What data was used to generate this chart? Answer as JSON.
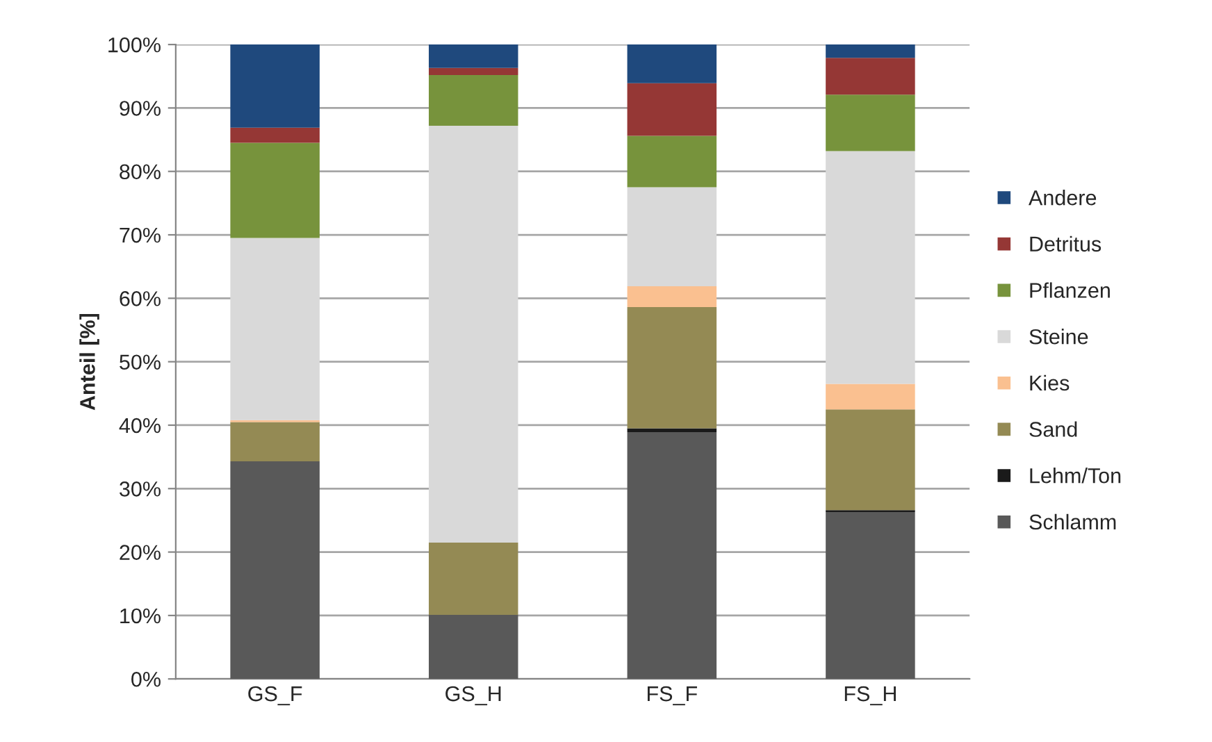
{
  "chart_data": {
    "type": "bar",
    "stacked": true,
    "ylabel": "Anteil [%]",
    "categories": [
      "GS_F",
      "GS_H",
      "FS_F",
      "FS_H"
    ],
    "series": [
      {
        "name": "Schlamm",
        "color": "#595959",
        "values": [
          34.3,
          10.1,
          38.9,
          26.3
        ]
      },
      {
        "name": "Lehm/Ton",
        "color": "#1a1a1a",
        "values": [
          0,
          0,
          0.6,
          0.3
        ]
      },
      {
        "name": "Sand",
        "color": "#948a54",
        "values": [
          6.2,
          11.4,
          19.1,
          15.9
        ]
      },
      {
        "name": "Kies",
        "color": "#fac090",
        "values": [
          0.3,
          0,
          3.3,
          4.0
        ]
      },
      {
        "name": "Steine",
        "color": "#d9d9d9",
        "values": [
          28.7,
          65.7,
          15.6,
          36.7
        ]
      },
      {
        "name": "Pflanzen",
        "color": "#77933c",
        "values": [
          15.0,
          8.0,
          8.1,
          8.9
        ]
      },
      {
        "name": "Detritus",
        "color": "#953735",
        "values": [
          2.4,
          1.1,
          8.3,
          5.8
        ]
      },
      {
        "name": "Andere",
        "color": "#1f497d",
        "values": [
          13.1,
          3.7,
          6.1,
          2.1
        ]
      }
    ],
    "ylim": [
      0,
      100
    ],
    "yticks": [
      {
        "value": 0,
        "label": "0%"
      },
      {
        "value": 10,
        "label": "10%"
      },
      {
        "value": 20,
        "label": "20%"
      },
      {
        "value": 30,
        "label": "30%"
      },
      {
        "value": 40,
        "label": "40%"
      },
      {
        "value": 50,
        "label": "50%"
      },
      {
        "value": 60,
        "label": "60%"
      },
      {
        "value": 70,
        "label": "70%"
      },
      {
        "value": 80,
        "label": "80%"
      },
      {
        "value": 90,
        "label": "90%"
      },
      {
        "value": 100,
        "label": "100%"
      }
    ],
    "grid": "y",
    "legend": "right"
  }
}
